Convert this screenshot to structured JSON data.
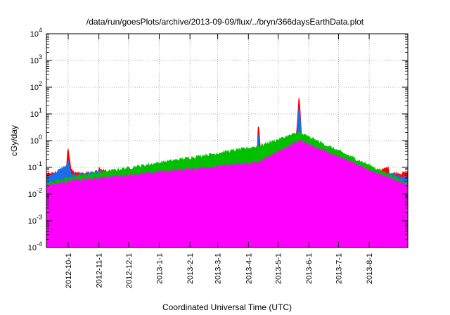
{
  "chart_data": {
    "type": "area",
    "title": "/data/run/goesPlots/archive/2013-09-09/flux/../bryn/366daysEarthData.plot",
    "xlabel": "Coordinated Universal Time (UTC)",
    "ylabel": "cGy/day",
    "yscale": "log",
    "ylim": [
      0.0001,
      10000
    ],
    "xlim": [
      "2012-09-09",
      "2013-09-09"
    ],
    "grid": true,
    "y_ticks": [
      {
        "base": "10",
        "exp": "-4"
      },
      {
        "base": "10",
        "exp": "-3"
      },
      {
        "base": "10",
        "exp": "-2"
      },
      {
        "base": "10",
        "exp": "-1"
      },
      {
        "base": "10",
        "exp": "0"
      },
      {
        "base": "10",
        "exp": "1"
      },
      {
        "base": "10",
        "exp": "2"
      },
      {
        "base": "10",
        "exp": "3"
      },
      {
        "base": "10",
        "exp": "4"
      }
    ],
    "x_ticks": [
      {
        "date": "2012-10-01",
        "label": "2012-10-1"
      },
      {
        "date": "2012-11-01",
        "label": "2012-11-1"
      },
      {
        "date": "2012-12-01",
        "label": "2012-12-1"
      },
      {
        "date": "2013-01-01",
        "label": "2013-1-1"
      },
      {
        "date": "2013-02-01",
        "label": "2013-2-1"
      },
      {
        "date": "2013-03-01",
        "label": "2013-3-1"
      },
      {
        "date": "2013-04-01",
        "label": "2013-4-1"
      },
      {
        "date": "2013-05-01",
        "label": "2013-5-1"
      },
      {
        "date": "2013-06-01",
        "label": "2013-6-1"
      },
      {
        "date": "2013-07-01",
        "label": "2013-7-1"
      },
      {
        "date": "2013-08-01",
        "label": "2013-8-1"
      }
    ],
    "series": [
      {
        "color": "#ff0000",
        "x": [
          "2012-09-09",
          "2012-09-20",
          "2012-09-29",
          "2012-09-30",
          "2012-10-01",
          "2012-10-04",
          "2012-10-08",
          "2012-10-20",
          "2012-10-31",
          "2012-11-01",
          "2012-11-03",
          "2012-11-15",
          "2012-12-01",
          "2012-12-20",
          "2013-01-15",
          "2013-01-25",
          "2013-02-05",
          "2013-02-20",
          "2013-03-10",
          "2013-03-16",
          "2013-03-18",
          "2013-03-25",
          "2013-04-05",
          "2013-04-10",
          "2013-04-11",
          "2013-04-13",
          "2013-04-18",
          "2013-04-23",
          "2013-04-25",
          "2013-05-01",
          "2013-05-10",
          "2013-05-15",
          "2013-05-16",
          "2013-05-18",
          "2013-05-20",
          "2013-05-22",
          "2013-05-23",
          "2013-05-25",
          "2013-05-28",
          "2013-06-05",
          "2013-06-20",
          "2013-06-23",
          "2013-06-25",
          "2013-07-01",
          "2013-07-20",
          "2013-08-15",
          "2013-08-20",
          "2013-08-22",
          "2013-09-09"
        ],
        "values": [
          0.055,
          0.06,
          0.06,
          0.3,
          0.55,
          0.08,
          0.06,
          0.06,
          0.06,
          0.1,
          0.08,
          0.06,
          0.06,
          0.055,
          0.06,
          0.06,
          0.06,
          0.06,
          0.06,
          0.2,
          0.07,
          0.06,
          0.06,
          0.5,
          5.5,
          0.6,
          0.08,
          0.15,
          0.07,
          0.06,
          0.08,
          0.8,
          0.3,
          0.4,
          3,
          50,
          20,
          1,
          0.1,
          0.06,
          0.06,
          0.28,
          0.1,
          0.06,
          0.06,
          0.08,
          0.1,
          0.06,
          0.06
        ]
      },
      {
        "color": "#1a6fe8",
        "x": [
          "2012-09-09",
          "2012-09-30",
          "2012-10-01",
          "2012-10-04",
          "2012-11-01",
          "2012-11-15",
          "2013-01-01",
          "2013-03-16",
          "2013-03-20",
          "2013-04-10",
          "2013-04-11",
          "2013-04-13",
          "2013-04-20",
          "2013-05-15",
          "2013-05-20",
          "2013-05-22",
          "2013-05-23",
          "2013-05-26",
          "2013-06-10",
          "2013-06-23",
          "2013-06-27",
          "2013-08-20",
          "2013-09-09"
        ],
        "values": [
          0.04,
          0.12,
          0.2,
          0.05,
          0.07,
          0.045,
          0.04,
          0.12,
          0.045,
          0.4,
          2.5,
          0.35,
          0.05,
          0.4,
          1.5,
          20,
          12,
          0.4,
          0.045,
          0.15,
          0.05,
          0.06,
          0.04
        ]
      },
      {
        "color": "#00c000",
        "x": [
          "2012-09-09",
          "2012-10-01",
          "2013-04-11",
          "2013-05-22",
          "2013-09-09"
        ],
        "values": [
          0.025,
          0.04,
          0.6,
          2,
          0.025
        ]
      },
      {
        "color": "#ff00ff",
        "x": [
          "2012-09-09",
          "2012-10-01",
          "2013-04-11",
          "2013-05-22",
          "2013-09-09"
        ],
        "values": [
          0.02,
          0.03,
          0.15,
          1,
          0.02
        ]
      }
    ]
  }
}
